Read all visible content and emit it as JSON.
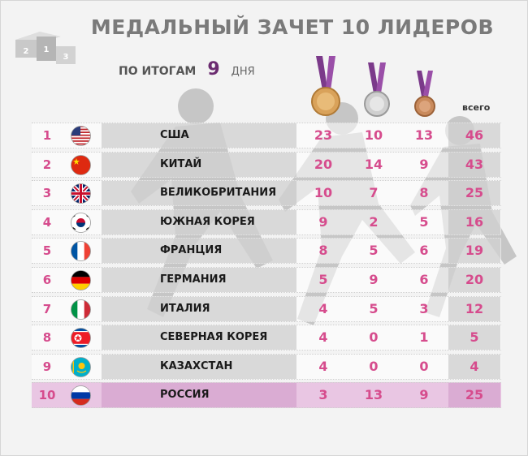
{
  "title": "МЕДАЛЬНЫЙ ЗАЧЕТ 10 ЛИДЕРОВ",
  "subtitle": {
    "label": "ПО ИТОГАМ",
    "day_number": "9",
    "days_label": "ДНЯ"
  },
  "podium_digits": [
    "2",
    "1",
    "3"
  ],
  "header": {
    "total_label": "всего"
  },
  "colors": {
    "accent": "#d64c8d",
    "purple": "#6b2b70",
    "highlight": "#e9c6e3"
  },
  "rows": [
    {
      "rank": "1",
      "country": "США",
      "flag": "us-flag-icon",
      "gold": "23",
      "silver": "10",
      "bronze": "13",
      "total": "46"
    },
    {
      "rank": "2",
      "country": "КИТАЙ",
      "flag": "china-flag-icon",
      "gold": "20",
      "silver": "14",
      "bronze": "9",
      "total": "43"
    },
    {
      "rank": "3",
      "country": "ВЕЛИКОБРИТАНИЯ",
      "flag": "uk-flag-icon",
      "gold": "10",
      "silver": "7",
      "bronze": "8",
      "total": "25"
    },
    {
      "rank": "4",
      "country": "ЮЖНАЯ КОРЕЯ",
      "flag": "south-korea-flag-icon",
      "gold": "9",
      "silver": "2",
      "bronze": "5",
      "total": "16"
    },
    {
      "rank": "5",
      "country": "ФРАНЦИЯ",
      "flag": "france-flag-icon",
      "gold": "8",
      "silver": "5",
      "bronze": "6",
      "total": "19"
    },
    {
      "rank": "6",
      "country": "ГЕРМАНИЯ",
      "flag": "germany-flag-icon",
      "gold": "5",
      "silver": "9",
      "bronze": "6",
      "total": "20"
    },
    {
      "rank": "7",
      "country": "ИТАЛИЯ",
      "flag": "italy-flag-icon",
      "gold": "4",
      "silver": "5",
      "bronze": "3",
      "total": "12"
    },
    {
      "rank": "8",
      "country": "СЕВЕРНАЯ КОРЕЯ",
      "flag": "north-korea-flag-icon",
      "gold": "4",
      "silver": "0",
      "bronze": "1",
      "total": "5"
    },
    {
      "rank": "9",
      "country": "КАЗАХСТАН",
      "flag": "kazakhstan-flag-icon",
      "gold": "4",
      "silver": "0",
      "bronze": "0",
      "total": "4"
    },
    {
      "rank": "10",
      "country": "РОССИЯ",
      "flag": "russia-flag-icon",
      "gold": "3",
      "silver": "13",
      "bronze": "9",
      "total": "25",
      "highlight": true
    }
  ]
}
